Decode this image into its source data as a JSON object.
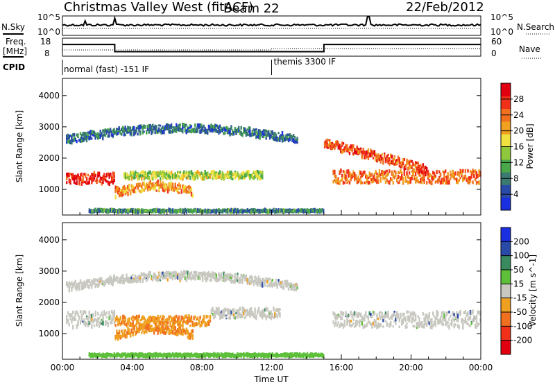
{
  "header": {
    "station": "Christmas Valley West (fitACF)",
    "beam": "Beam 22",
    "date": "22/Feb/2012"
  },
  "top_panels": {
    "nsky_label": "N.Sky",
    "nsky_ticks": [
      "10^5",
      "10^0"
    ],
    "nsearch_label": "N.Search",
    "nsearch_ticks": [
      "10^5",
      "10^0"
    ],
    "freq_label_1": "Freq.",
    "freq_label_2": "[MHz]",
    "freq_ticks": [
      "18",
      "8"
    ],
    "nave_label": "Nave",
    "nave_ticks": [
      "60",
      "0"
    ],
    "cpid_label": "CPID",
    "cpid_segments": [
      {
        "label": "normal (fast) -151 IF",
        "start_hour": 0
      },
      {
        "label": "themis 3300 IF",
        "start_hour": 12
      }
    ],
    "freq_levels": [
      {
        "from": 0,
        "to": 3.0,
        "mhz": 14.5
      },
      {
        "from": 3.0,
        "to": 15.0,
        "mhz": 10.5
      },
      {
        "from": 15.0,
        "to": 24.0,
        "mhz": 14.5
      }
    ]
  },
  "chart_data": [
    {
      "type": "heatmap",
      "title": "",
      "xlabel": "",
      "ylabel": "Slant Range [km]",
      "xlim": [
        0,
        24
      ],
      "ylim": [
        180,
        4550
      ],
      "y_ticks": [
        "1000",
        "2000",
        "3000",
        "4000"
      ],
      "y_tick_values": [
        1000,
        2000,
        3000,
        4000
      ],
      "colorbar": {
        "label": "Power [dB]",
        "ticks": [
          "4",
          "8",
          "12",
          "16",
          "20",
          "24",
          "28"
        ],
        "colors": [
          "#1a2fe0",
          "#2a4aa8",
          "#3a7a70",
          "#4aa84a",
          "#8fc83a",
          "#f0e040",
          "#f0a020",
          "#f07020",
          "#f03018",
          "#e00010"
        ]
      },
      "features": [
        {
          "name": "near-range band",
          "x_start": 0.2,
          "x_end": 3.0,
          "range_center": 1350,
          "range_width": 350,
          "power_db": 28
        },
        {
          "name": "pre-dawn arc",
          "x_start": 3.0,
          "x_end": 7.5,
          "range_center": 900,
          "range_width": 300,
          "power_db": 22
        },
        {
          "name": "midday band",
          "x_start": 3.5,
          "x_end": 11.5,
          "range_center": 1450,
          "range_width": 220,
          "power_db": 16
        },
        {
          "name": "far arc",
          "x_start": 0.2,
          "x_end": 13.5,
          "range_center": 2600,
          "range_width": 250,
          "power_db": 8
        },
        {
          "name": "evening band",
          "x_start": 15.5,
          "x_end": 24,
          "range_center": 1400,
          "range_width": 400,
          "power_db": 24
        },
        {
          "name": "evening descending arc",
          "x_start": 15.0,
          "x_end": 21.0,
          "range_center": 1900,
          "range_width": 300,
          "power_db": 26
        },
        {
          "name": "ground band",
          "x_start": 1.5,
          "x_end": 15.0,
          "range_center": 310,
          "range_width": 60,
          "power_db": 10
        }
      ]
    },
    {
      "type": "heatmap",
      "title": "",
      "xlabel": "Time UT",
      "ylabel": "Slant Range [km]",
      "xlim": [
        0,
        24
      ],
      "ylim": [
        180,
        4550
      ],
      "x_ticks": [
        "00:00",
        "04:00",
        "08:00",
        "12:00",
        "16:00",
        "20:00",
        "00:00"
      ],
      "y_ticks": [
        "1000",
        "2000",
        "3000",
        "4000"
      ],
      "y_tick_values": [
        1000,
        2000,
        3000,
        4000
      ],
      "colorbar": {
        "label": "Velocity [m s^-1]",
        "ticks": [
          "200",
          "100",
          "50",
          "15",
          "-15",
          "-50",
          "-100",
          "-200"
        ],
        "colors": [
          "#1a2fe0",
          "#2a4aa8",
          "#3a8a60",
          "#5ec03a",
          "#c8c8c0",
          "#f0a020",
          "#f07020",
          "#f03018",
          "#e00010"
        ]
      },
      "features": [
        {
          "name": "near-range band",
          "x_start": 0.2,
          "x_end": 3.0,
          "range_center": 1450,
          "range_width": 500,
          "velocity": 0
        },
        {
          "name": "morning band",
          "x_start": 3.0,
          "x_end": 8.5,
          "range_center": 1400,
          "range_width": 300,
          "velocity": -60
        },
        {
          "name": "pre-dawn arc",
          "x_start": 3.0,
          "x_end": 7.5,
          "range_center": 950,
          "range_width": 250,
          "velocity": -60
        },
        {
          "name": "midday band",
          "x_start": 8.5,
          "x_end": 12.5,
          "range_center": 1650,
          "range_width": 300,
          "velocity": 0
        },
        {
          "name": "far arc",
          "x_start": 0.2,
          "x_end": 13.5,
          "range_center": 2500,
          "range_width": 250,
          "velocity": 0
        },
        {
          "name": "evening band",
          "x_start": 15.5,
          "x_end": 24,
          "range_center": 1450,
          "range_width": 500,
          "velocity": 0
        },
        {
          "name": "ground band",
          "x_start": 1.5,
          "x_end": 15.0,
          "range_center": 310,
          "range_width": 60,
          "velocity": 30
        }
      ]
    }
  ]
}
